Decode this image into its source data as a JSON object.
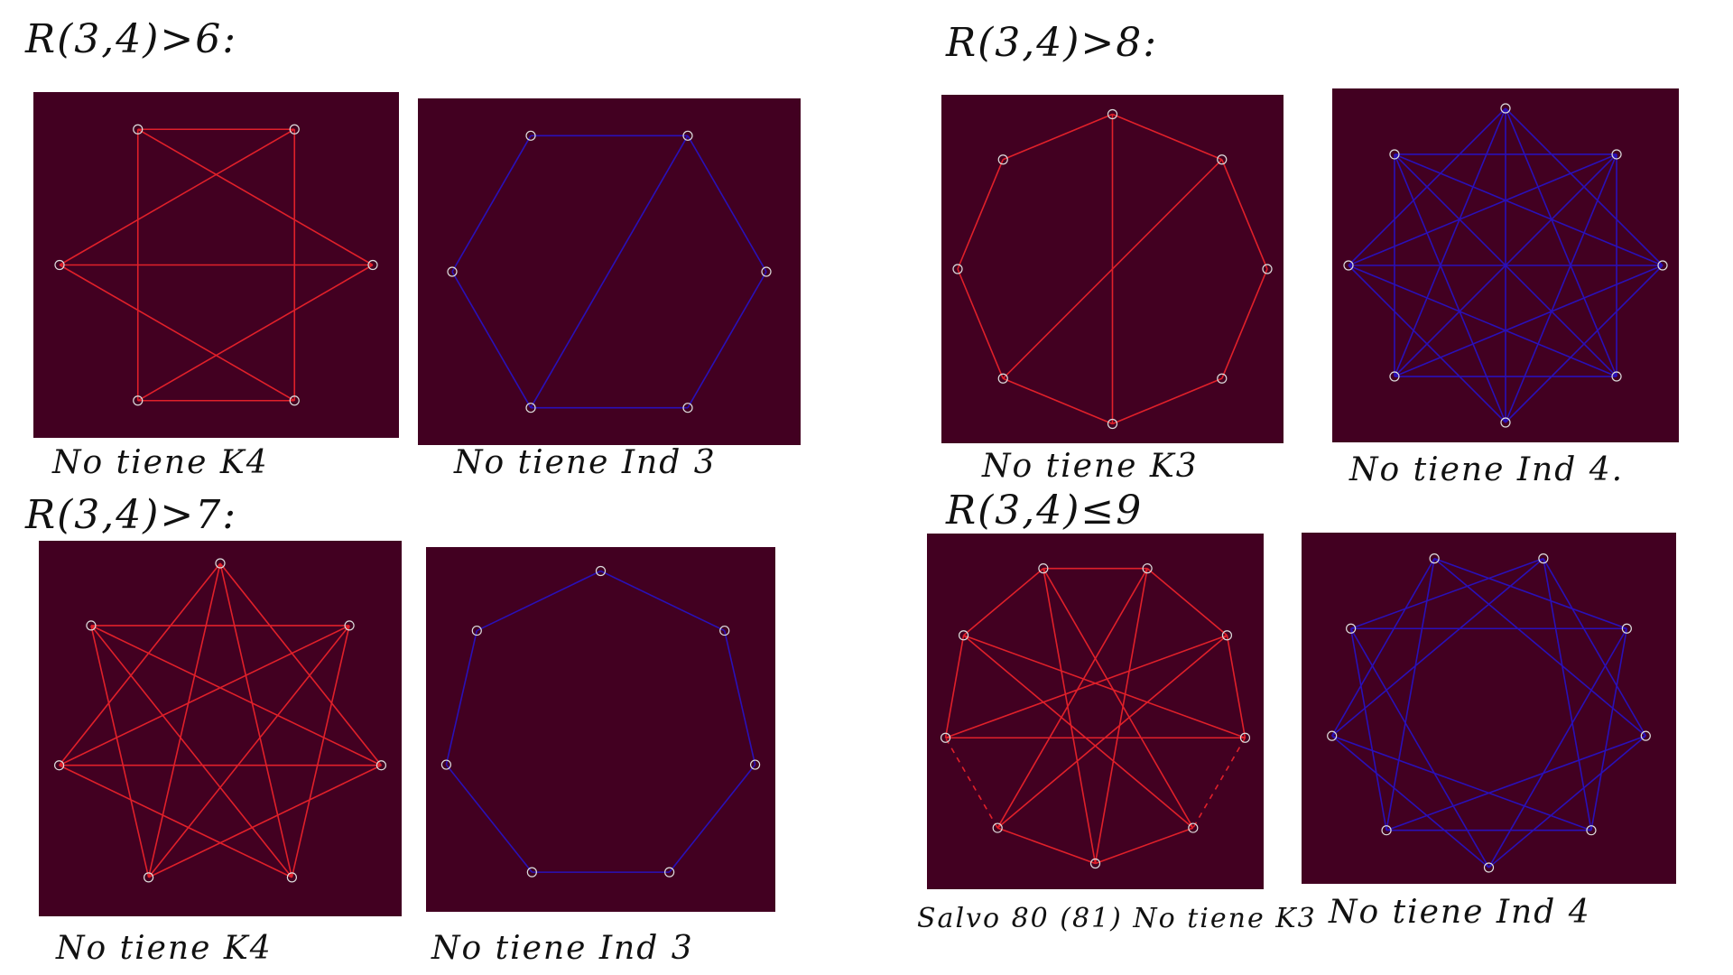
{
  "colors": {
    "background": "#420021",
    "red_edge": "#e0202a",
    "blue_edge": "#2a10b8",
    "vertex": "#dddddd"
  },
  "headings": [
    "R(3,4)>6:",
    "R(3,4)>7:",
    "R(3,4)>8:",
    "R(3,4)≤9"
  ],
  "captions": [
    "No tiene K4",
    "No tiene Ind 3",
    "No tiene K4",
    "No tiene Ind 3",
    "No tiene K3",
    "No tiene Ind 4.",
    "Salvo 80 (81) No tiene K3",
    "No tiene Ind 4"
  ],
  "graphs": [
    {
      "n": 6,
      "color": "red",
      "edges": [
        [
          0,
          2
        ],
        [
          0,
          4
        ],
        [
          0,
          5
        ],
        [
          1,
          3
        ],
        [
          1,
          4
        ],
        [
          1,
          5
        ],
        [
          2,
          3
        ],
        [
          2,
          4
        ],
        [
          3,
          5
        ]
      ]
    },
    {
      "n": 6,
      "color": "blue",
      "edges": [
        [
          0,
          1
        ],
        [
          0,
          3
        ],
        [
          1,
          2
        ],
        [
          2,
          3
        ],
        [
          3,
          4
        ],
        [
          4,
          5
        ],
        [
          5,
          0
        ]
      ]
    },
    {
      "n": 7,
      "color": "red",
      "edges": [
        [
          0,
          2
        ],
        [
          0,
          3
        ],
        [
          0,
          4
        ],
        [
          0,
          5
        ],
        [
          1,
          3
        ],
        [
          1,
          4
        ],
        [
          1,
          5
        ],
        [
          1,
          6
        ],
        [
          2,
          4
        ],
        [
          2,
          5
        ],
        [
          2,
          6
        ],
        [
          3,
          5
        ],
        [
          3,
          6
        ],
        [
          4,
          6
        ]
      ]
    },
    {
      "n": 7,
      "color": "blue",
      "edges": [
        [
          0,
          1
        ],
        [
          1,
          2
        ],
        [
          2,
          3
        ],
        [
          3,
          4
        ],
        [
          4,
          5
        ],
        [
          5,
          6
        ],
        [
          6,
          0
        ]
      ]
    },
    {
      "n": 8,
      "color": "red",
      "edges": [
        [
          0,
          1
        ],
        [
          1,
          2
        ],
        [
          2,
          3
        ],
        [
          3,
          4
        ],
        [
          4,
          5
        ],
        [
          5,
          6
        ],
        [
          6,
          7
        ],
        [
          7,
          0
        ],
        [
          0,
          4
        ],
        [
          1,
          5
        ]
      ]
    },
    {
      "n": 8,
      "color": "blue",
      "edges": [
        [
          0,
          2
        ],
        [
          0,
          3
        ],
        [
          0,
          5
        ],
        [
          0,
          6
        ],
        [
          1,
          3
        ],
        [
          1,
          4
        ],
        [
          1,
          6
        ],
        [
          1,
          7
        ],
        [
          2,
          4
        ],
        [
          2,
          5
        ],
        [
          2,
          7
        ],
        [
          3,
          5
        ],
        [
          3,
          6
        ],
        [
          4,
          6
        ],
        [
          4,
          7
        ],
        [
          5,
          7
        ],
        [
          0,
          4
        ],
        [
          1,
          5
        ],
        [
          2,
          6
        ],
        [
          3,
          7
        ]
      ]
    },
    {
      "n": 9,
      "color": "red",
      "dashed": [
        [
          2,
          3
        ],
        [
          5,
          6
        ]
      ],
      "edges": [
        [
          0,
          1
        ],
        [
          1,
          2
        ],
        [
          2,
          3
        ],
        [
          3,
          4
        ],
        [
          4,
          5
        ],
        [
          5,
          6
        ],
        [
          6,
          7
        ],
        [
          7,
          8
        ],
        [
          8,
          0
        ],
        [
          0,
          4
        ],
        [
          1,
          5
        ],
        [
          2,
          6
        ],
        [
          3,
          7
        ],
        [
          4,
          8
        ],
        [
          5,
          0
        ],
        [
          6,
          1
        ],
        [
          7,
          2
        ],
        [
          8,
          3
        ]
      ]
    },
    {
      "n": 9,
      "color": "blue",
      "edges": [
        [
          0,
          2
        ],
        [
          1,
          3
        ],
        [
          2,
          4
        ],
        [
          3,
          5
        ],
        [
          4,
          6
        ],
        [
          5,
          7
        ],
        [
          6,
          8
        ],
        [
          7,
          0
        ],
        [
          8,
          1
        ],
        [
          0,
          3
        ],
        [
          1,
          4
        ],
        [
          2,
          5
        ],
        [
          3,
          6
        ],
        [
          4,
          7
        ],
        [
          5,
          8
        ],
        [
          6,
          0
        ],
        [
          7,
          1
        ],
        [
          8,
          2
        ]
      ]
    }
  ]
}
